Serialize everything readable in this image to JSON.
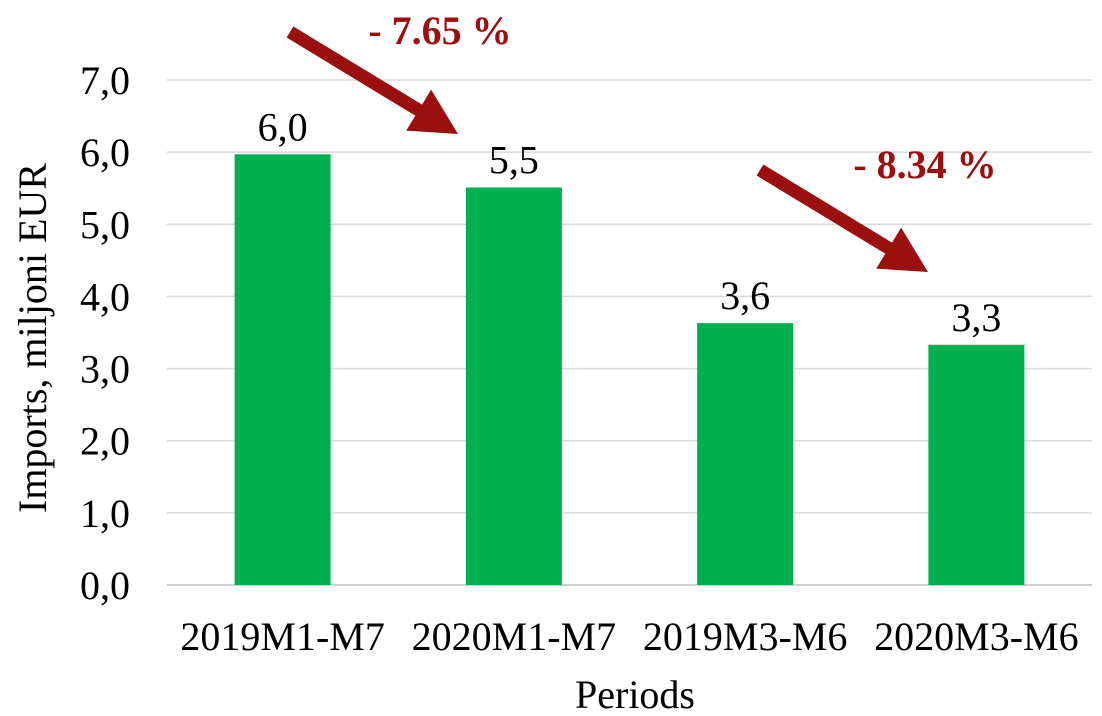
{
  "chart_data": {
    "type": "bar",
    "categories": [
      "2019M1-M7",
      "2020M1-M7",
      "2019M3-M6",
      "2020M3-M6"
    ],
    "values": [
      5.97,
      5.51,
      3.63,
      3.33
    ],
    "data_labels": [
      "6,0",
      "5,5",
      "3,6",
      "3,3"
    ],
    "xlabel": "Periods",
    "ylabel": "Imports, miljoni EUR",
    "ylim": [
      0,
      7
    ],
    "yticks": [
      0,
      1,
      2,
      3,
      4,
      5,
      6,
      7
    ],
    "ytick_labels": [
      "0,0",
      "1,0",
      "2,0",
      "3,0",
      "4,0",
      "5,0",
      "6,0",
      "7,0"
    ],
    "grid": true,
    "bar_color": "#00b050",
    "annotations": [
      {
        "text": "- 7.65 %",
        "from": "2019M1-M7",
        "to": "2020M1-M7"
      },
      {
        "text": "- 8.34 %",
        "from": "2019M3-M6",
        "to": "2020M3-M6"
      }
    ],
    "annotation_color": "#9b0f0f"
  }
}
